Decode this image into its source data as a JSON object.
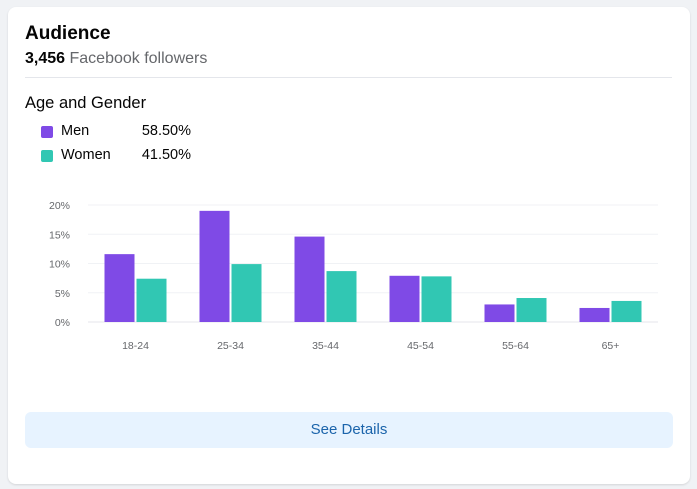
{
  "card": {
    "title": "Audience",
    "followers_count": "3,456",
    "followers_label": "Facebook followers"
  },
  "section": {
    "title": "Age and Gender"
  },
  "legend": [
    {
      "label": "Men",
      "pct": "58.50%",
      "color": "#7f4ae6"
    },
    {
      "label": "Women",
      "pct": "41.50%",
      "color": "#31c7b3"
    }
  ],
  "chart_data": {
    "type": "bar",
    "categories": [
      "18-24",
      "25-34",
      "35-44",
      "45-54",
      "55-64",
      "65+"
    ],
    "series": [
      {
        "name": "Men",
        "color": "#7f4ae6",
        "values": [
          11.6,
          19.0,
          14.6,
          7.9,
          3.0,
          2.4
        ]
      },
      {
        "name": "Women",
        "color": "#31c7b3",
        "values": [
          7.4,
          9.9,
          8.7,
          7.8,
          4.1,
          3.6
        ]
      }
    ],
    "yticks": [
      "0%",
      "5%",
      "10%",
      "15%",
      "20%"
    ],
    "ylim": [
      0,
      20
    ],
    "grid": true,
    "legend_position": "top-left"
  },
  "button": {
    "label": "See Details"
  }
}
